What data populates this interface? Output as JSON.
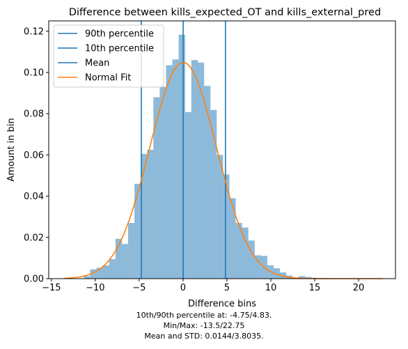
{
  "chart_data": {
    "type": "bar",
    "title": "Difference between kills_expected_OT and kills_external_pred",
    "xlabel": "Difference bins",
    "ylabel": "Amount in bin",
    "xlim": [
      -15.3,
      24.2
    ],
    "ylim": [
      0,
      0.125
    ],
    "xticks": [
      -15,
      -10,
      -5,
      0,
      5,
      10,
      15,
      20
    ],
    "xtick_labels": [
      "−15",
      "−10",
      "−5",
      "0",
      "5",
      "10",
      "15",
      "20"
    ],
    "yticks": [
      0.0,
      0.02,
      0.04,
      0.06,
      0.08,
      0.1,
      0.12
    ],
    "ytick_labels": [
      "0.00",
      "0.02",
      "0.04",
      "0.06",
      "0.08",
      "0.10",
      "0.12"
    ],
    "grid": false,
    "legend_position": "top-left",
    "histogram": {
      "name": "bins",
      "color": "#8ebad9",
      "bin_width": 0.72,
      "bins": [
        {
          "x0": -11.3,
          "v": 0.0012
        },
        {
          "x0": -10.58,
          "v": 0.0045
        },
        {
          "x0": -9.86,
          "v": 0.0053
        },
        {
          "x0": -9.14,
          "v": 0.0064
        },
        {
          "x0": -8.42,
          "v": 0.0095
        },
        {
          "x0": -7.7,
          "v": 0.0193
        },
        {
          "x0": -6.98,
          "v": 0.0168
        },
        {
          "x0": -6.26,
          "v": 0.027
        },
        {
          "x0": -5.54,
          "v": 0.046
        },
        {
          "x0": -4.82,
          "v": 0.0605
        },
        {
          "x0": -4.1,
          "v": 0.0625
        },
        {
          "x0": -3.38,
          "v": 0.088
        },
        {
          "x0": -2.66,
          "v": 0.093
        },
        {
          "x0": -1.94,
          "v": 0.1035
        },
        {
          "x0": -1.22,
          "v": 0.1063
        },
        {
          "x0": -0.5,
          "v": 0.1183
        },
        {
          "x0": 0.22,
          "v": 0.0808
        },
        {
          "x0": 0.94,
          "v": 0.106
        },
        {
          "x0": 1.66,
          "v": 0.1048
        },
        {
          "x0": 2.38,
          "v": 0.0935
        },
        {
          "x0": 3.1,
          "v": 0.0818
        },
        {
          "x0": 3.82,
          "v": 0.06
        },
        {
          "x0": 4.54,
          "v": 0.0505
        },
        {
          "x0": 5.26,
          "v": 0.039
        },
        {
          "x0": 5.98,
          "v": 0.027
        },
        {
          "x0": 6.7,
          "v": 0.0248
        },
        {
          "x0": 7.42,
          "v": 0.0185
        },
        {
          "x0": 8.14,
          "v": 0.0113
        },
        {
          "x0": 8.86,
          "v": 0.011
        },
        {
          "x0": 9.58,
          "v": 0.0065
        },
        {
          "x0": 10.3,
          "v": 0.005
        },
        {
          "x0": 11.02,
          "v": 0.003
        },
        {
          "x0": 11.74,
          "v": 0.0015
        },
        {
          "x0": 12.46,
          "v": 0.0005
        },
        {
          "x0": 13.18,
          "v": 0.0012
        },
        {
          "x0": 13.9,
          "v": 0.0008
        },
        {
          "x0": 14.62,
          "v": 0.0004
        }
      ]
    },
    "vlines": [
      {
        "name": "90th percentile",
        "x": 4.83,
        "color": "#1f77b4"
      },
      {
        "name": "10th percentile",
        "x": -4.75,
        "color": "#1f77b4"
      },
      {
        "name": "Mean",
        "x": 0.0144,
        "color": "#1f77b4"
      }
    ],
    "normal_fit": {
      "name": "Normal Fit",
      "mean": 0.0144,
      "std": 3.8035,
      "x_range": [
        -13.5,
        22.75
      ],
      "color": "#ff7f0e"
    }
  },
  "captions": [
    "10th/90th percentile at: -4.75/4.83.",
    "Min/Max: -13.5/22.75",
    "Mean and STD: 0.0144/3.8035."
  ]
}
